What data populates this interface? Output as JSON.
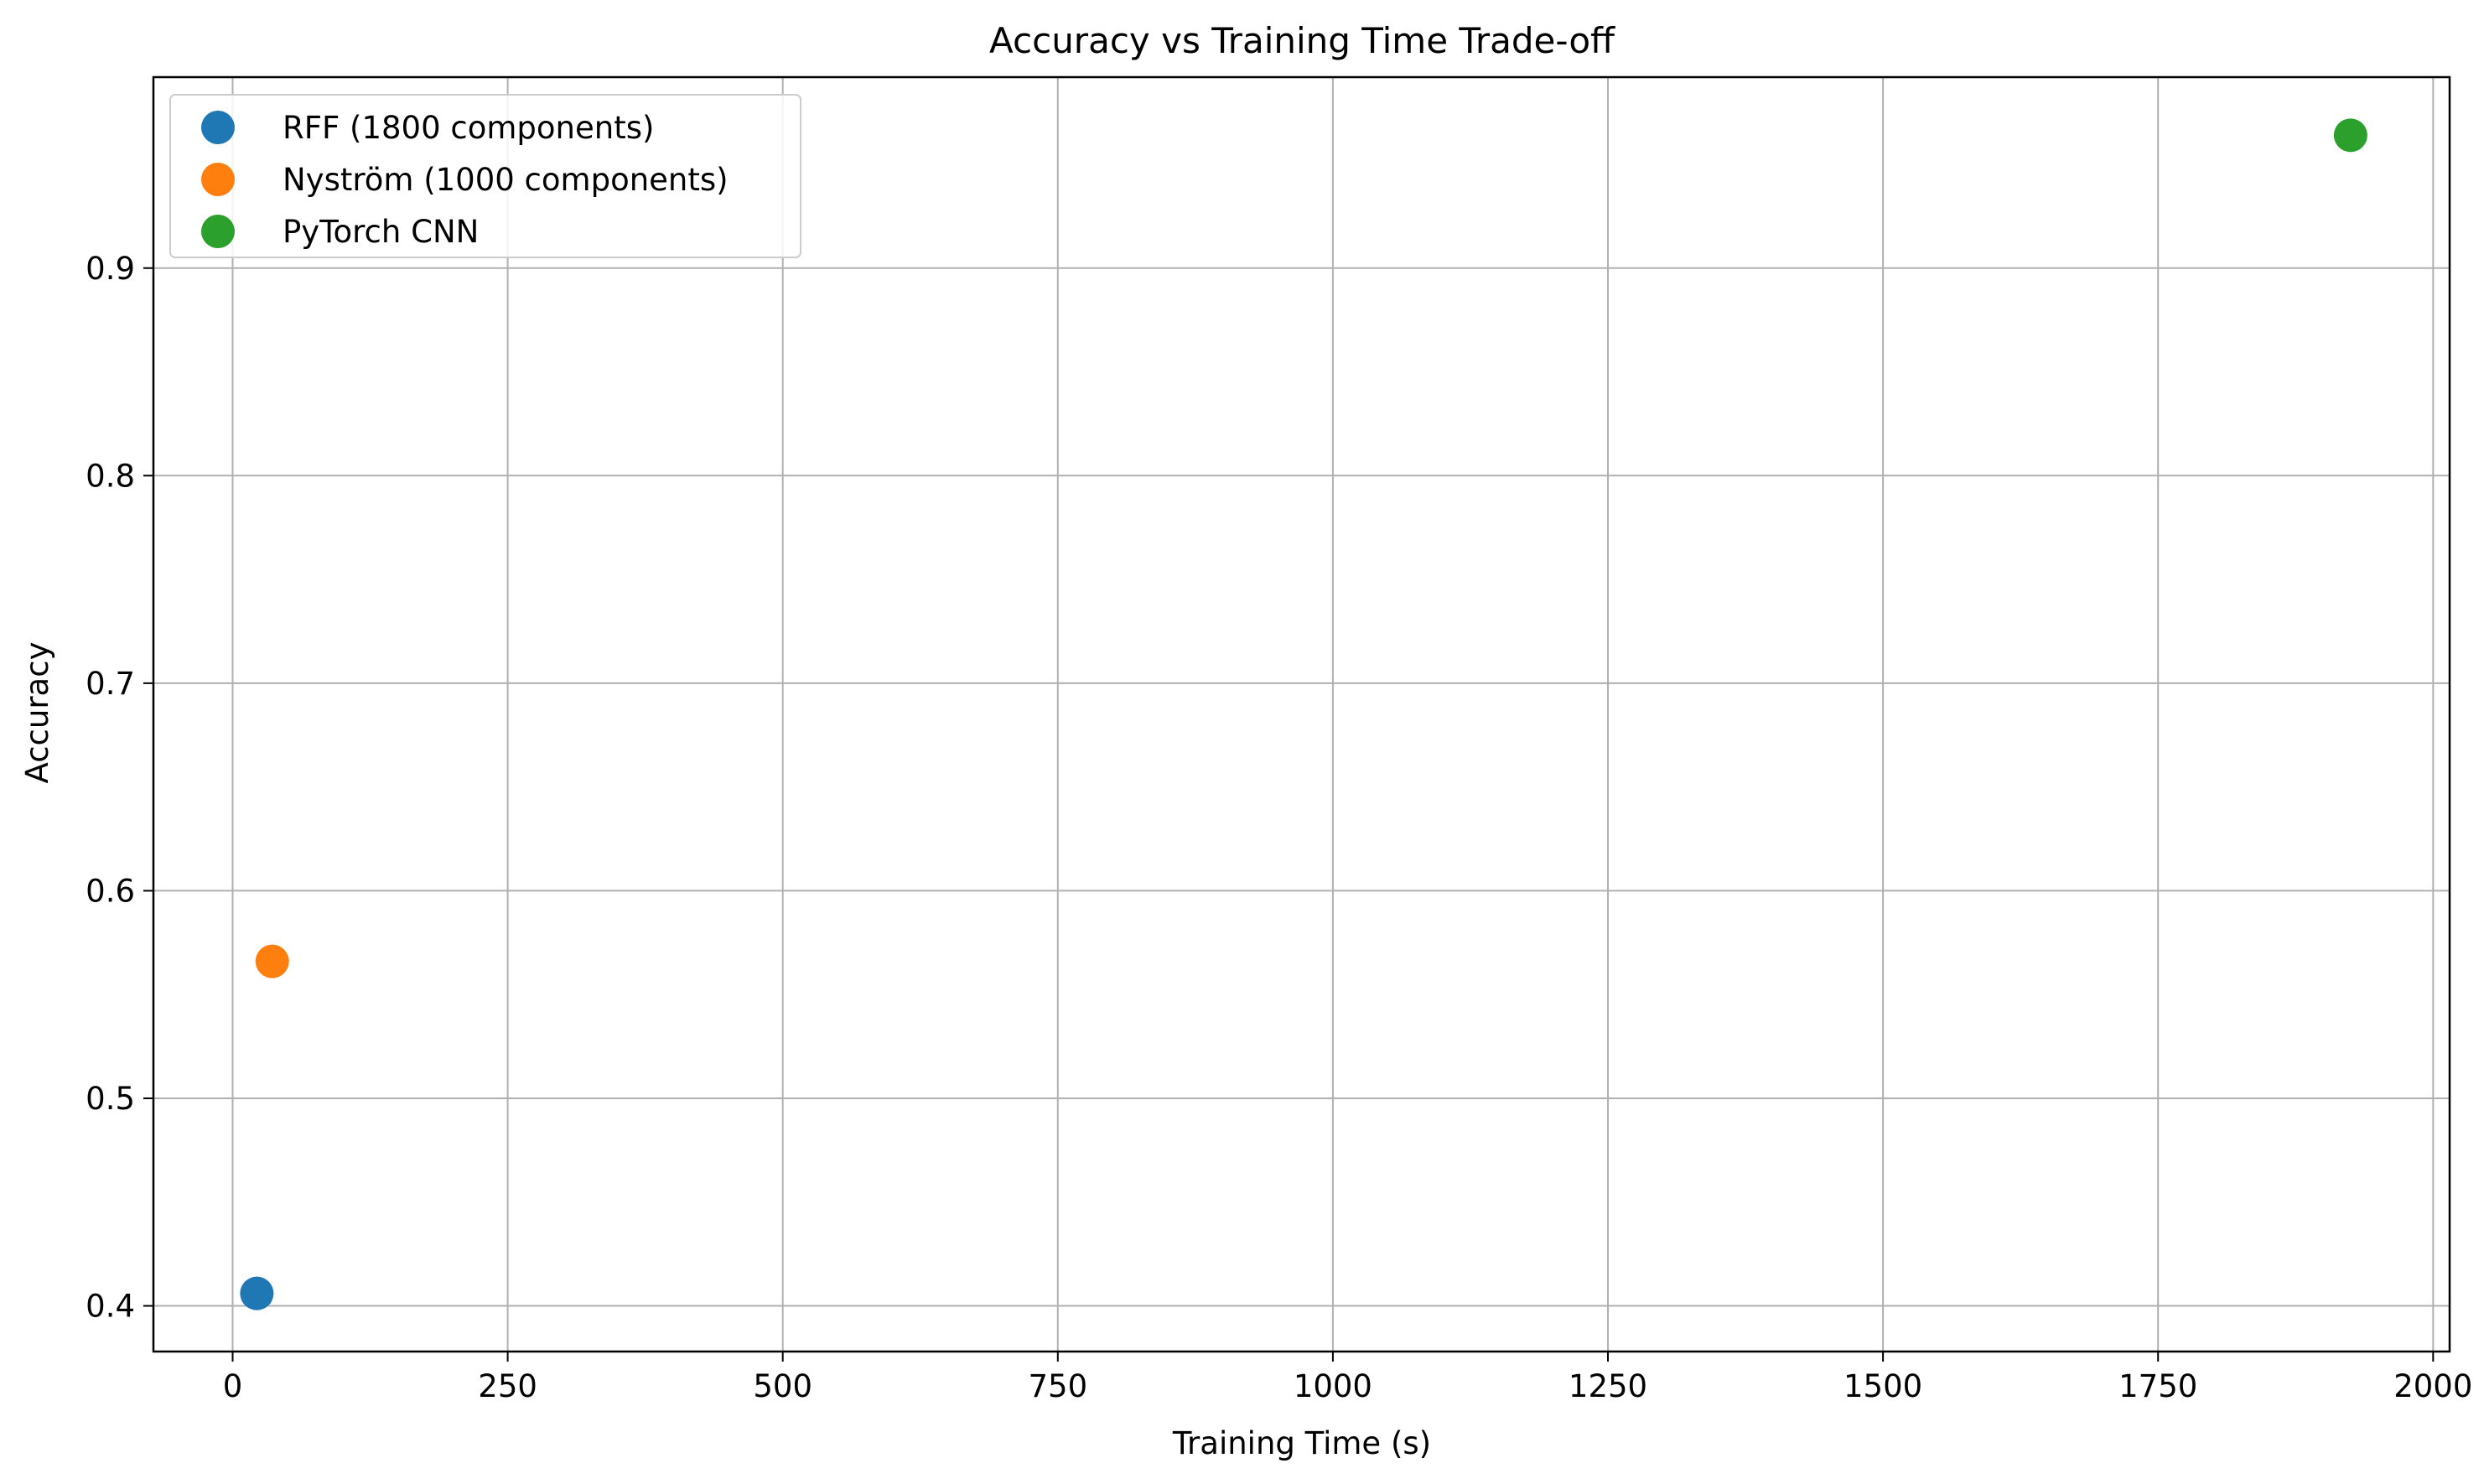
{
  "chart_data": {
    "type": "scatter",
    "title": "Accuracy vs Training Time Trade-off",
    "xlabel": "Training Time (s)",
    "ylabel": "Accuracy",
    "xlim": [
      -72,
      2015
    ],
    "ylim": [
      0.378,
      0.992
    ],
    "xticks": [
      0,
      250,
      500,
      750,
      1000,
      1250,
      1500,
      1750,
      2000
    ],
    "xtick_labels": [
      "0",
      "250",
      "500",
      "750",
      "1000",
      "1250",
      "1500",
      "1750",
      "2000"
    ],
    "yticks": [
      0.4,
      0.5,
      0.6,
      0.7,
      0.8,
      0.9
    ],
    "ytick_labels": [
      "0.4",
      "0.5",
      "0.6",
      "0.7",
      "0.8",
      "0.9"
    ],
    "grid": true,
    "legend_position": "top-left",
    "series": [
      {
        "name": "RFF (1800 components)",
        "color": "#1f77b4",
        "points": [
          {
            "x": 22,
            "y": 0.406
          }
        ]
      },
      {
        "name": "Nyström (1000 components)",
        "color": "#ff7f0e",
        "points": [
          {
            "x": 36,
            "y": 0.566
          }
        ]
      },
      {
        "name": "PyTorch CNN",
        "color": "#2ca02c",
        "points": [
          {
            "x": 1925,
            "y": 0.964
          }
        ]
      }
    ]
  }
}
